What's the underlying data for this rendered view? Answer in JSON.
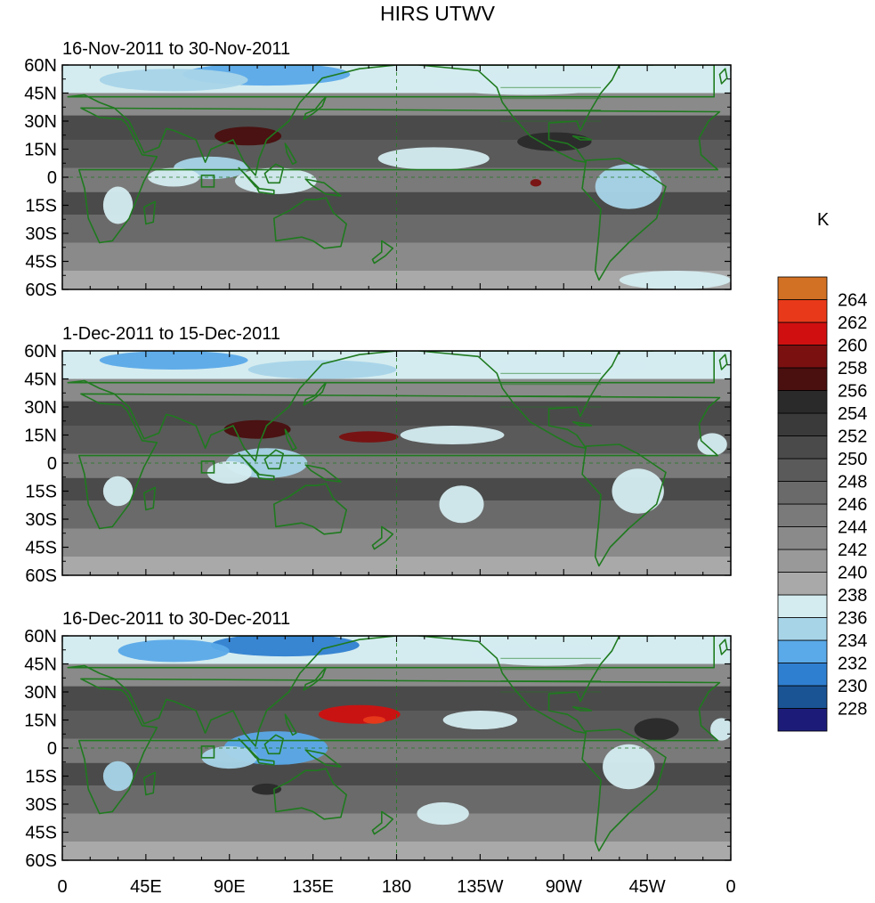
{
  "figure": {
    "title": "HIRS UTWV",
    "units": "K"
  },
  "panels": [
    {
      "title": "16-Nov-2011 to 30-Nov-2011"
    },
    {
      "title": "1-Dec-2011 to 15-Dec-2011"
    },
    {
      "title": "16-Dec-2011 to 30-Dec-2011"
    }
  ],
  "axes": {
    "lat_ticks": [
      "60N",
      "45N",
      "30N",
      "15N",
      "0",
      "15S",
      "30S",
      "45S",
      "60S"
    ],
    "lon_ticks": [
      "0",
      "45E",
      "90E",
      "135E",
      "180",
      "135W",
      "90W",
      "45W",
      "0"
    ]
  },
  "colorbar": {
    "levels": [
      "228",
      "230",
      "232",
      "234",
      "236",
      "238",
      "240",
      "242",
      "244",
      "246",
      "248",
      "250",
      "252",
      "254",
      "256",
      "258",
      "260",
      "262",
      "264"
    ],
    "colors": [
      "#1c1c78",
      "#1a5494",
      "#2f7fd0",
      "#5aa9e8",
      "#a8d4e8",
      "#d4ecf0",
      "#a9a9a9",
      "#999999",
      "#8a8a8a",
      "#7a7a7a",
      "#6a6a6a",
      "#5a5a5a",
      "#4a4a4a",
      "#3a3a3a",
      "#2a2a2a",
      "#4a0f0f",
      "#7a1010",
      "#d01010",
      "#e83a1a",
      "#d27023"
    ]
  },
  "map_colors": {
    "coastline": "#1f7a1f"
  }
}
